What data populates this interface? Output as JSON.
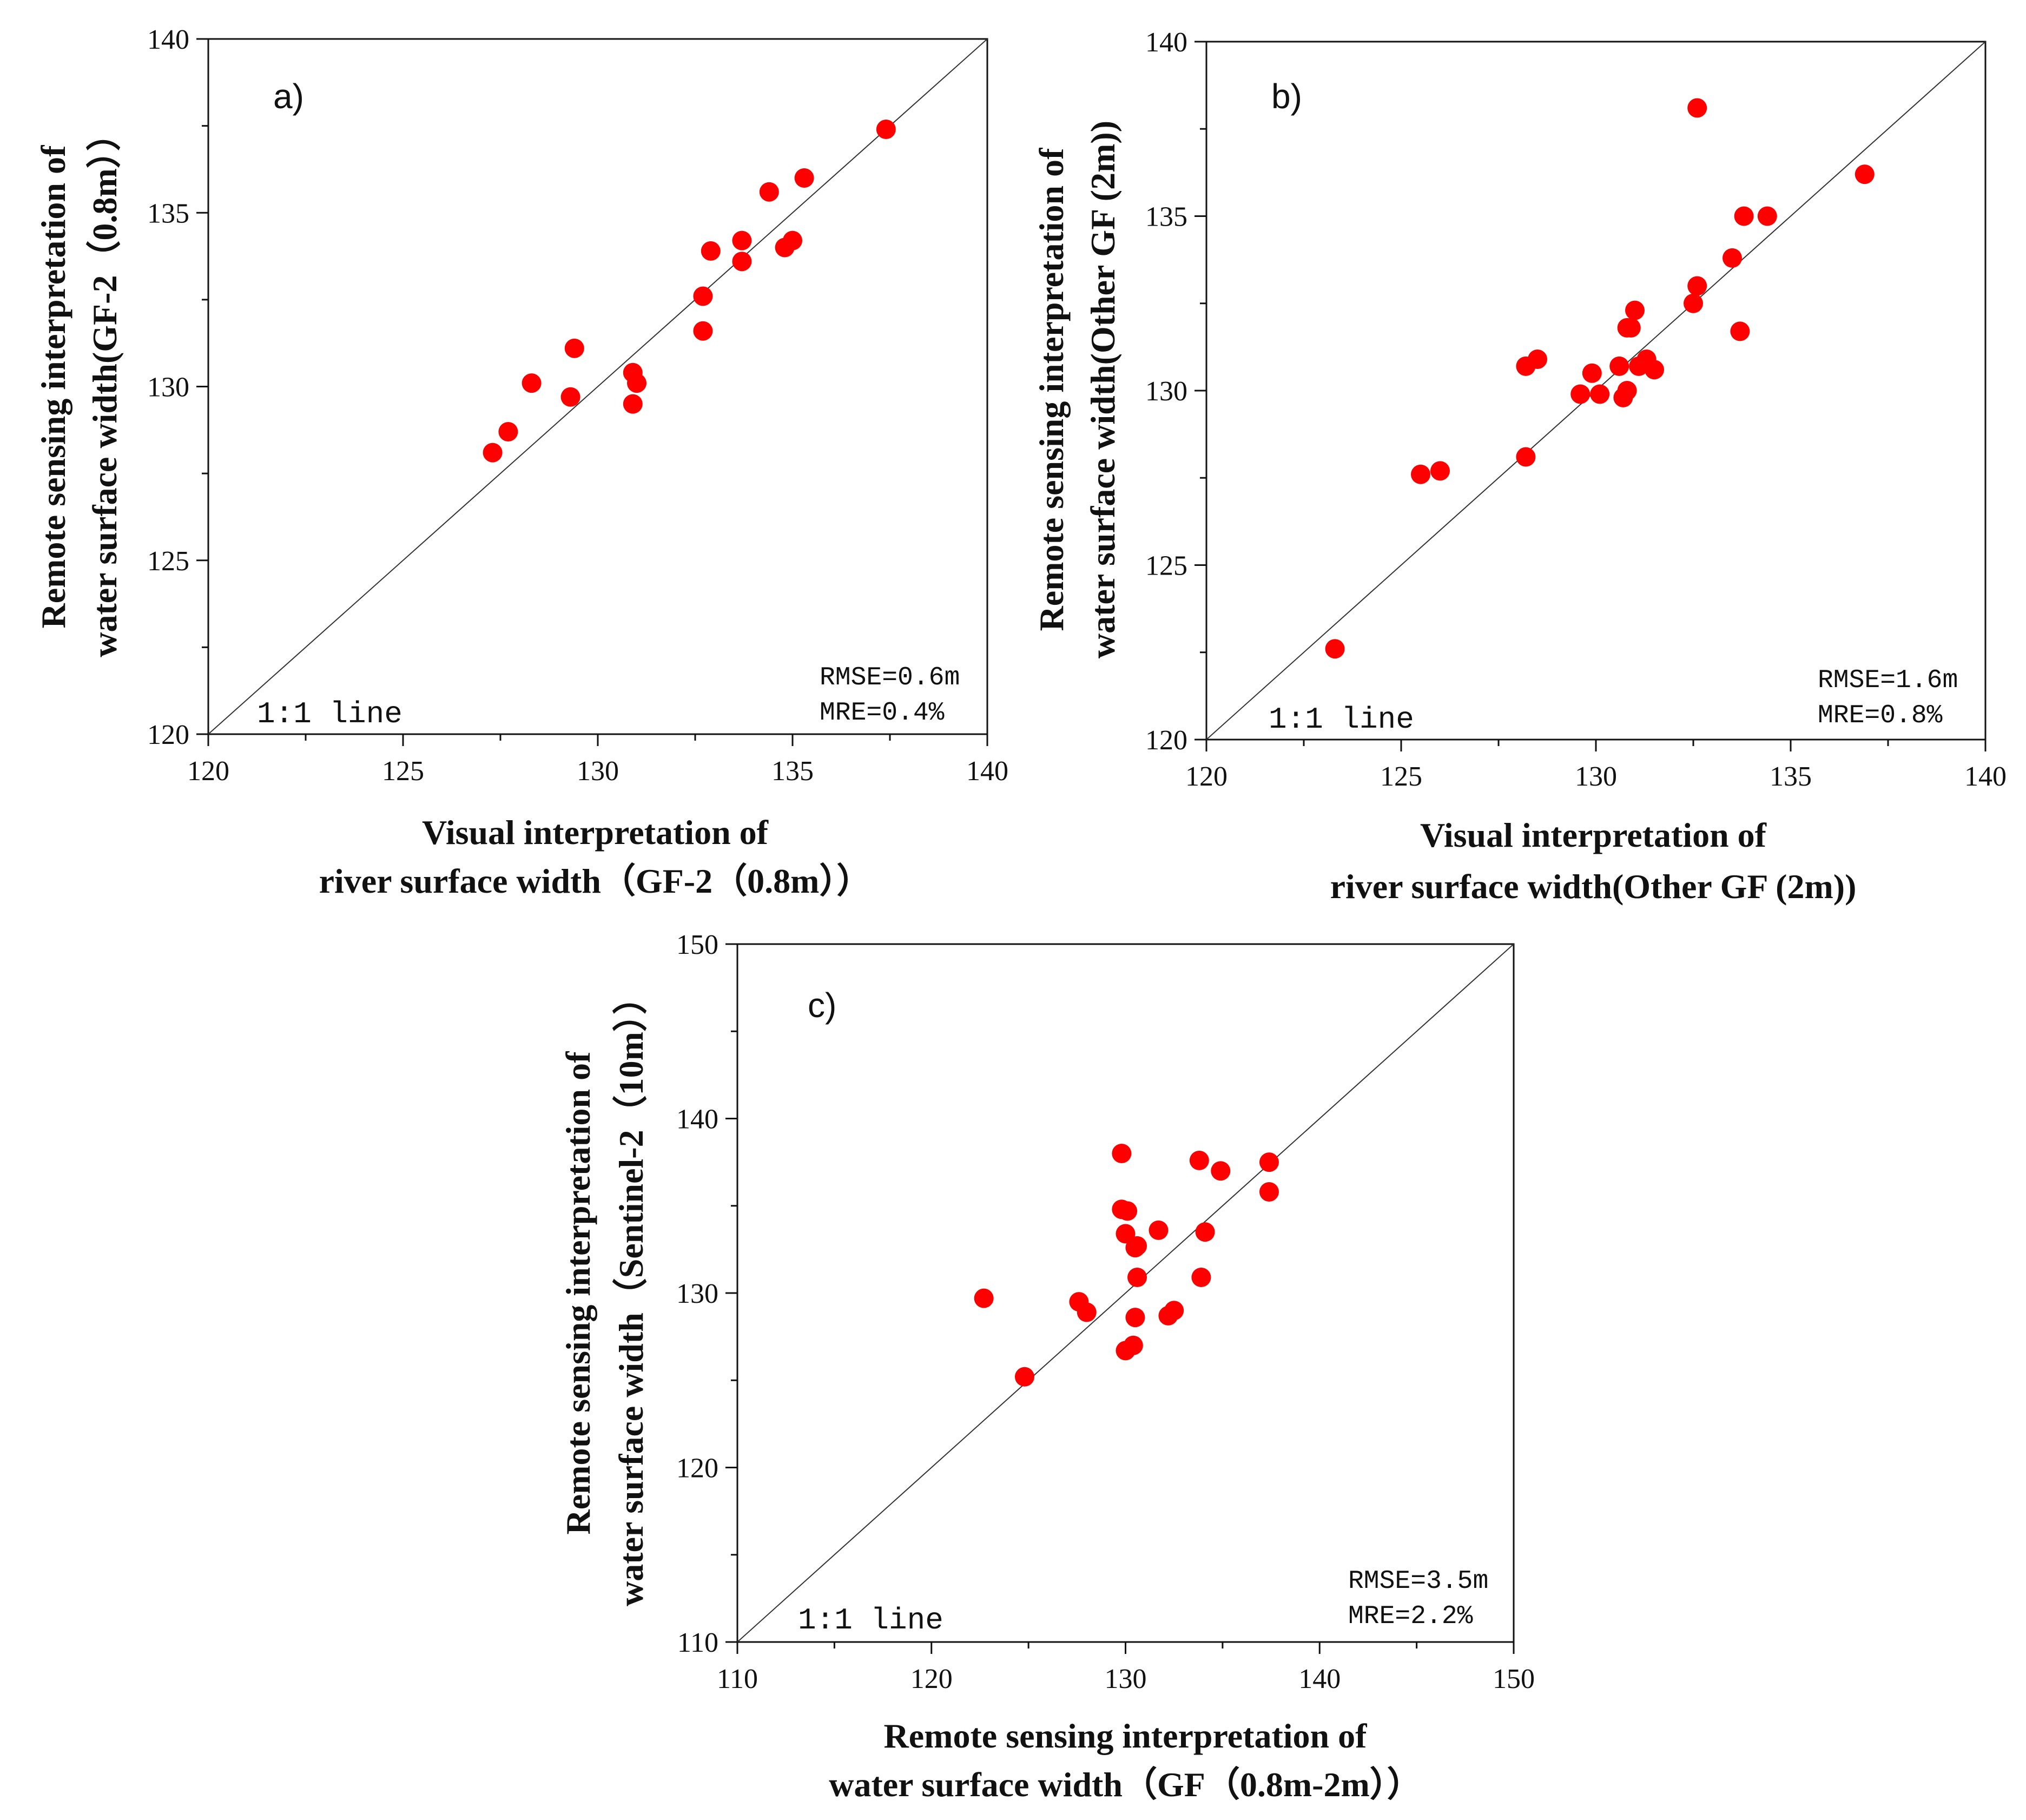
{
  "chart_data": [
    {
      "type": "scatter",
      "panel_label": "a)",
      "xlabel_lines": [
        "Visual interpretation of",
        "river surface width（GF-2（0.8m））"
      ],
      "ylabel_lines": [
        "Remote sensing interpretation of",
        "water surface width(GF-2（0.8m））"
      ],
      "xlim": [
        120,
        140
      ],
      "ylim": [
        120,
        140
      ],
      "xticks": [
        120,
        125,
        130,
        135,
        140
      ],
      "yticks": [
        120,
        125,
        130,
        135,
        140
      ],
      "reference_line": "1:1 line",
      "rmse": "RMSE=0.6m",
      "mre": "MRE=0.4%",
      "point_color": "#ff0000",
      "x": [
        127.3,
        127.7,
        128.3,
        129.3,
        129.4,
        130.9,
        130.9,
        131.0,
        132.7,
        132.7,
        132.9,
        133.7,
        133.7,
        134.4,
        134.8,
        135.0,
        135.3,
        137.4
      ],
      "y": [
        128.1,
        128.7,
        130.1,
        129.7,
        131.1,
        130.4,
        129.5,
        130.1,
        132.6,
        131.6,
        133.9,
        134.2,
        133.6,
        135.6,
        134.0,
        134.2,
        136.0,
        137.4
      ]
    },
    {
      "type": "scatter",
      "panel_label": "b)",
      "xlabel_lines": [
        "Visual interpretation of",
        "river surface width(Other GF (2m))"
      ],
      "ylabel_lines": [
        "Remote sensing interpretation of",
        "water surface width(Other GF (2m))"
      ],
      "xlim": [
        120,
        140
      ],
      "ylim": [
        120,
        140
      ],
      "xticks": [
        120,
        125,
        130,
        135,
        140
      ],
      "yticks": [
        120,
        125,
        130,
        135,
        140
      ],
      "reference_line": "1:1 line",
      "rmse": "RMSE=1.6m",
      "mre": "MRE=0.8%",
      "point_color": "#ff0000",
      "x": [
        123.3,
        125.5,
        126.0,
        128.2,
        128.2,
        128.5,
        129.6,
        129.9,
        130.1,
        130.6,
        130.7,
        130.8,
        130.8,
        130.9,
        131.0,
        131.1,
        131.3,
        131.5,
        132.5,
        132.6,
        132.6,
        133.5,
        133.7,
        133.8,
        134.4,
        136.9
      ],
      "y": [
        122.6,
        127.6,
        127.7,
        128.1,
        130.7,
        130.9,
        129.9,
        130.5,
        129.9,
        130.7,
        129.8,
        131.8,
        130.0,
        131.8,
        132.3,
        130.7,
        130.9,
        130.6,
        132.5,
        133.0,
        138.1,
        133.8,
        131.7,
        135.0,
        135.0,
        136.2
      ]
    },
    {
      "type": "scatter",
      "panel_label": "c)",
      "xlabel_lines": [
        "Remote sensing interpretation of",
        "water surface width（GF（0.8m-2m））"
      ],
      "ylabel_lines": [
        "Remote sensing interpretation of",
        "water surface width（Sentinel-2（10m））"
      ],
      "xlim": [
        110,
        150
      ],
      "ylim": [
        110,
        150
      ],
      "xticks": [
        110,
        120,
        130,
        140,
        150
      ],
      "yticks": [
        110,
        120,
        130,
        140,
        150
      ],
      "reference_line": "1:1 line",
      "rmse": "RMSE=3.5m",
      "mre": "MRE=2.2%",
      "point_color": "#ff0000",
      "x": [
        122.7,
        124.8,
        127.6,
        128.0,
        129.8,
        129.8,
        130.0,
        130.0,
        130.1,
        130.4,
        130.5,
        130.5,
        130.6,
        130.6,
        131.7,
        132.2,
        132.5,
        133.8,
        133.9,
        134.1,
        134.9,
        137.4,
        137.4
      ],
      "y": [
        129.7,
        125.2,
        129.5,
        128.9,
        138.0,
        134.8,
        133.4,
        126.7,
        134.7,
        127.0,
        132.6,
        128.6,
        130.9,
        132.7,
        133.6,
        128.7,
        129.0,
        137.6,
        130.9,
        133.5,
        137.0,
        137.5,
        135.8
      ]
    }
  ]
}
